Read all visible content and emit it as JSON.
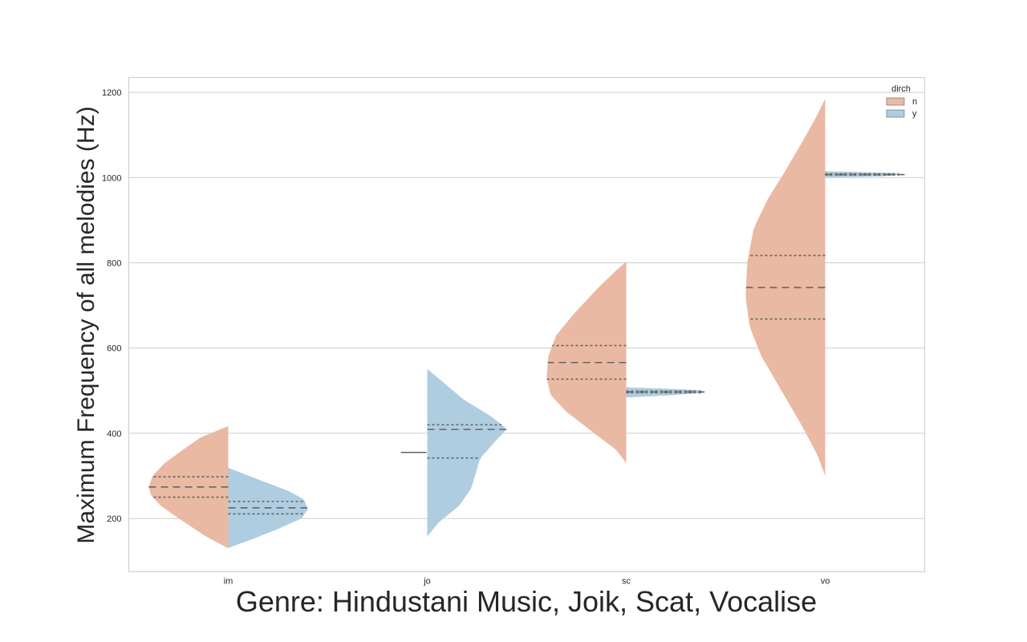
{
  "chart_data": {
    "type": "violin",
    "split": true,
    "title": "",
    "xlabel": "Genre: Hindustani Music, Joik, Scat, Vocalise",
    "ylabel": "Maximum Frequency of all melodies (Hz)",
    "categories": [
      "im",
      "jo",
      "sc",
      "vo"
    ],
    "ylim": [
      75,
      1235
    ],
    "yticks": [
      200,
      400,
      600,
      800,
      1000,
      1200
    ],
    "grid": "horizontal",
    "legend": {
      "title": "dirch",
      "placement": "top-right",
      "entries": [
        {
          "label": "n",
          "color": "#eab9a3"
        },
        {
          "label": "y",
          "color": "#afcde0"
        }
      ]
    },
    "series": [
      {
        "name": "n",
        "color": "#eab9a3",
        "violins": [
          {
            "category": "im",
            "ymin": 130,
            "ymax": 417,
            "q1": 250,
            "median": 274,
            "q3": 298,
            "profile": [
              [
                130,
                0.0
              ],
              [
                160,
                0.3
              ],
              [
                200,
                0.62
              ],
              [
                230,
                0.85
              ],
              [
                255,
                0.97
              ],
              [
                275,
                1.0
              ],
              [
                300,
                0.95
              ],
              [
                330,
                0.8
              ],
              [
                360,
                0.58
              ],
              [
                390,
                0.35
              ],
              [
                417,
                0.0
              ]
            ]
          },
          {
            "category": "jo",
            "single_value": 355
          },
          {
            "category": "sc",
            "ymin": 330,
            "ymax": 803,
            "q1": 527,
            "median": 566,
            "q3": 606,
            "profile": [
              [
                330,
                0.0
              ],
              [
                360,
                0.12
              ],
              [
                400,
                0.4
              ],
              [
                450,
                0.75
              ],
              [
                490,
                0.95
              ],
              [
                530,
                1.0
              ],
              [
                580,
                0.98
              ],
              [
                630,
                0.88
              ],
              [
                680,
                0.66
              ],
              [
                740,
                0.36
              ],
              [
                780,
                0.14
              ],
              [
                803,
                0.0
              ]
            ]
          },
          {
            "category": "vo",
            "ymin": 300,
            "ymax": 1185,
            "q1": 668,
            "median": 742,
            "q3": 817,
            "profile": [
              [
                300,
                0.0
              ],
              [
                350,
                0.1
              ],
              [
                420,
                0.3
              ],
              [
                500,
                0.55
              ],
              [
                580,
                0.8
              ],
              [
                650,
                0.95
              ],
              [
                720,
                1.0
              ],
              [
                800,
                0.98
              ],
              [
                880,
                0.9
              ],
              [
                950,
                0.72
              ],
              [
                1010,
                0.52
              ],
              [
                1080,
                0.3
              ],
              [
                1140,
                0.12
              ],
              [
                1185,
                0.0
              ]
            ]
          }
        ]
      },
      {
        "name": "y",
        "color": "#afcde0",
        "violins": [
          {
            "category": "im",
            "ymin": 131,
            "ymax": 319,
            "q1": 211,
            "median": 225,
            "q3": 240,
            "profile": [
              [
                131,
                0.0
              ],
              [
                150,
                0.28
              ],
              [
                175,
                0.62
              ],
              [
                200,
                0.92
              ],
              [
                222,
                1.0
              ],
              [
                245,
                0.95
              ],
              [
                265,
                0.75
              ],
              [
                290,
                0.4
              ],
              [
                319,
                0.0
              ]
            ]
          },
          {
            "category": "jo",
            "ymin": 158,
            "ymax": 551,
            "q1": 342,
            "median": 409,
            "q3": 420,
            "profile": [
              [
                158,
                0.0
              ],
              [
                190,
                0.14
              ],
              [
                230,
                0.4
              ],
              [
                270,
                0.55
              ],
              [
                300,
                0.6
              ],
              [
                340,
                0.66
              ],
              [
                380,
                0.85
              ],
              [
                410,
                1.0
              ],
              [
                440,
                0.8
              ],
              [
                480,
                0.45
              ],
              [
                520,
                0.2
              ],
              [
                551,
                0.0
              ]
            ]
          },
          {
            "category": "sc",
            "ymin": 484,
            "ymax": 508,
            "q1": 495,
            "median": 497,
            "q3": 499,
            "profile": [
              [
                484,
                0.0
              ],
              [
                489,
                0.55
              ],
              [
                495,
                0.95
              ],
              [
                498,
                1.0
              ],
              [
                502,
                0.85
              ],
              [
                505,
                0.45
              ],
              [
                508,
                0.0
              ]
            ]
          },
          {
            "category": "vo",
            "ymin": 1000,
            "ymax": 1015,
            "q1": 1006,
            "median": 1007,
            "q3": 1009,
            "profile": [
              [
                1000,
                0.0
              ],
              [
                1003,
                0.7
              ],
              [
                1007,
                1.0
              ],
              [
                1011,
                0.85
              ],
              [
                1015,
                0.0
              ]
            ]
          }
        ]
      }
    ]
  }
}
